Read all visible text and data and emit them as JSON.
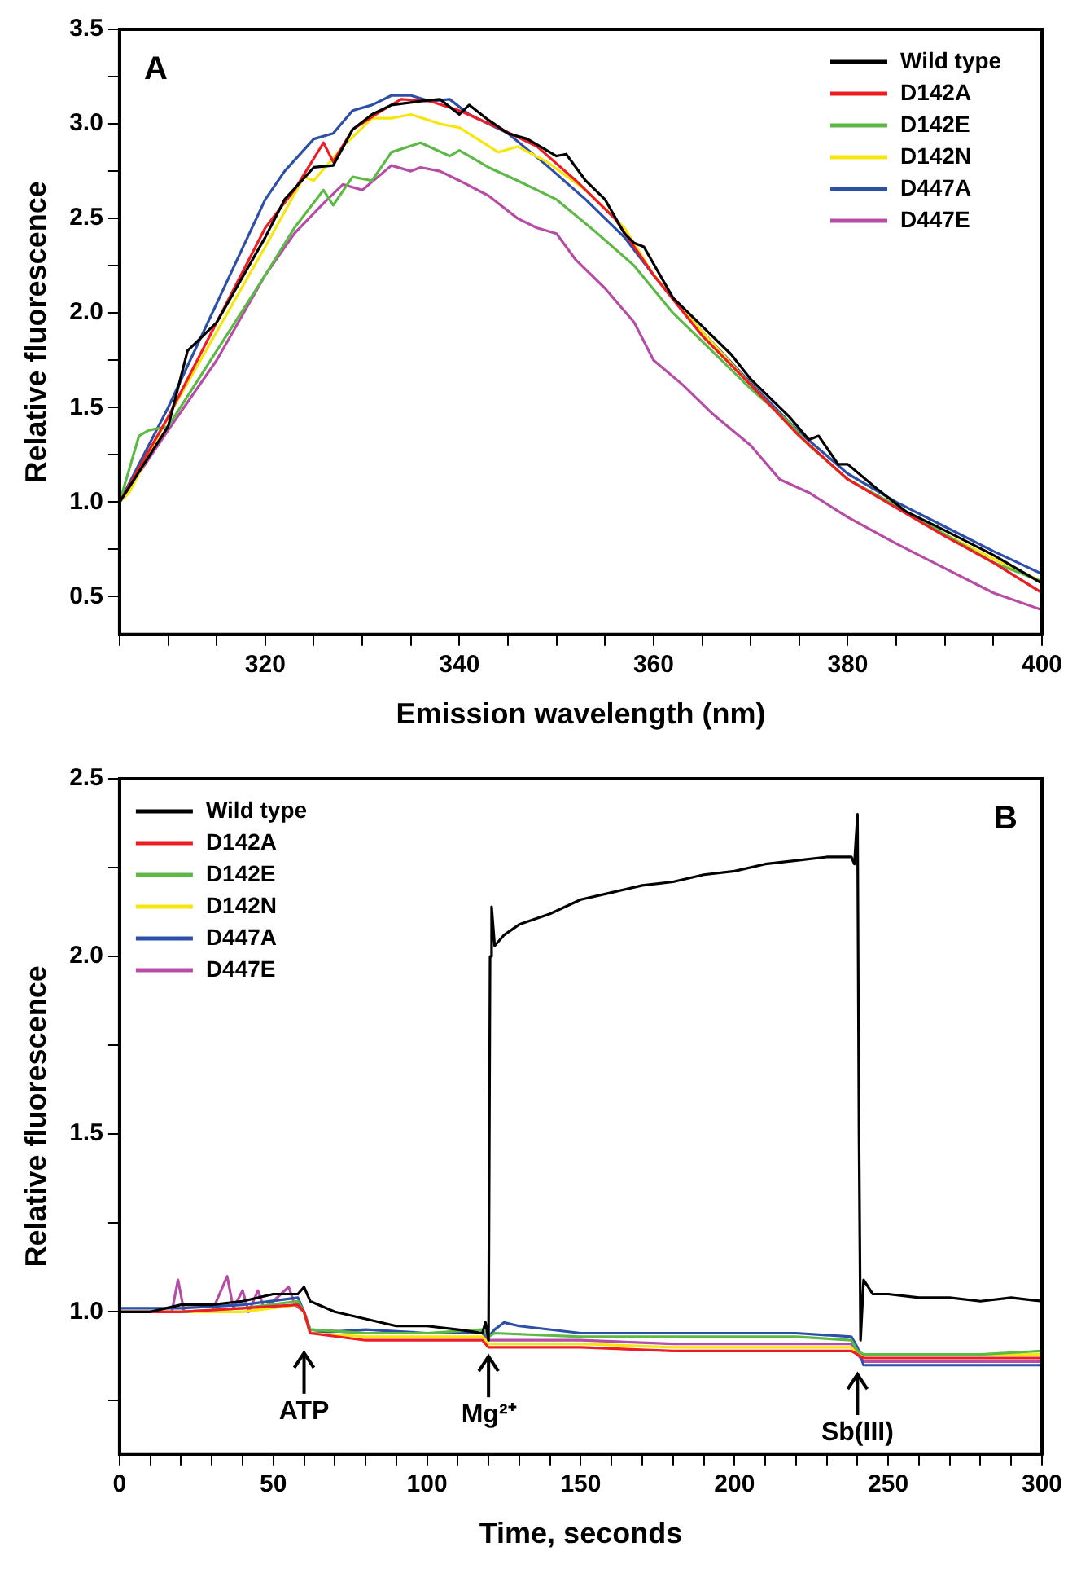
{
  "chart_data": [
    {
      "type": "line",
      "xlabel": "Emission wavelength (nm)",
      "ylabel": "Relative fluorescence",
      "annotations": [
        "A"
      ],
      "legend": "top right",
      "grid": false,
      "marker": "none",
      "line_style": "solid",
      "xlim": [
        305,
        400
      ],
      "xticks": [
        {
          "value": 305,
          "label": null
        },
        {
          "value": 310,
          "label": null
        },
        {
          "value": 315,
          "label": null
        },
        320,
        {
          "value": 325,
          "label": null
        },
        {
          "value": 330,
          "label": null
        },
        {
          "value": 335,
          "label": null
        },
        340,
        {
          "value": 345,
          "label": null
        },
        {
          "value": 350,
          "label": null
        },
        {
          "value": 355,
          "label": null
        },
        360,
        {
          "value": 365,
          "label": null
        },
        {
          "value": 370,
          "label": null
        },
        {
          "value": 375,
          "label": null
        },
        380,
        {
          "value": 385,
          "label": null
        },
        {
          "value": 390,
          "label": null
        },
        {
          "value": 395,
          "label": null
        },
        400
      ],
      "ylim": [
        0.3,
        3.5
      ],
      "yticks": [
        {
          "value": 0.5,
          "label": "0.5"
        },
        {
          "value": 0.75,
          "label": null
        },
        {
          "value": 1,
          "label": "1.0"
        },
        {
          "value": 1.25,
          "label": null
        },
        1.5,
        {
          "value": 1.75,
          "label": null
        },
        {
          "value": 2,
          "label": "2.0"
        },
        {
          "value": 2.25,
          "label": null
        },
        2.5,
        {
          "value": 2.75,
          "label": null
        },
        {
          "value": 3,
          "label": "3.0"
        },
        {
          "value": 3.25,
          "label": null
        },
        3.5
      ],
      "series": [
        {
          "name": "Wild type",
          "color": "#000000",
          "x": [
            305,
            310,
            312,
            315,
            320,
            322,
            325,
            327,
            329,
            331,
            333,
            336,
            338,
            340,
            341,
            343,
            345,
            347,
            350,
            351,
            353,
            355,
            357,
            358,
            359,
            362,
            365,
            368,
            370,
            372,
            374,
            376,
            377,
            379,
            380,
            383,
            386,
            390,
            395,
            400
          ],
          "values": [
            1.0,
            1.4,
            1.8,
            1.95,
            2.4,
            2.6,
            2.77,
            2.78,
            2.97,
            3.05,
            3.1,
            3.12,
            3.13,
            3.05,
            3.1,
            3.02,
            2.95,
            2.92,
            2.83,
            2.84,
            2.7,
            2.6,
            2.42,
            2.37,
            2.35,
            2.08,
            1.93,
            1.78,
            1.65,
            1.55,
            1.45,
            1.33,
            1.35,
            1.2,
            1.2,
            1.07,
            0.95,
            0.85,
            0.72,
            0.57
          ]
        },
        {
          "name": "D142A",
          "color": "#ee1c25",
          "x": [
            305,
            310,
            315,
            320,
            323,
            326,
            327,
            329,
            332,
            334,
            337,
            340,
            344,
            348,
            352,
            356,
            360,
            365,
            370,
            375,
            380,
            385,
            390,
            395,
            400
          ],
          "values": [
            1.0,
            1.45,
            1.95,
            2.45,
            2.65,
            2.9,
            2.8,
            2.97,
            3.07,
            3.13,
            3.12,
            3.07,
            2.98,
            2.88,
            2.7,
            2.5,
            2.2,
            1.88,
            1.62,
            1.35,
            1.12,
            0.97,
            0.82,
            0.68,
            0.52
          ]
        },
        {
          "name": "D142E",
          "color": "#5cb946",
          "x": [
            305,
            307,
            308,
            310,
            315,
            320,
            323,
            326,
            327,
            329,
            331,
            333,
            336,
            339,
            340,
            343,
            346,
            350,
            354,
            358,
            362,
            366,
            370,
            374,
            376,
            380,
            385,
            390,
            395,
            400
          ],
          "values": [
            1.0,
            1.35,
            1.38,
            1.4,
            1.8,
            2.2,
            2.45,
            2.65,
            2.57,
            2.72,
            2.7,
            2.85,
            2.9,
            2.83,
            2.86,
            2.77,
            2.7,
            2.6,
            2.43,
            2.25,
            2.0,
            1.8,
            1.6,
            1.42,
            1.3,
            1.12,
            0.98,
            0.83,
            0.68,
            0.58
          ]
        },
        {
          "name": "D142N",
          "color": "#f5e60f",
          "x": [
            305,
            306,
            310,
            315,
            320,
            324,
            325,
            328,
            331,
            333,
            335,
            338,
            340,
            344,
            346,
            349,
            353,
            357,
            360,
            365,
            370,
            375,
            380,
            385,
            390,
            395,
            400
          ],
          "values": [
            1.0,
            1.05,
            1.45,
            1.9,
            2.35,
            2.72,
            2.7,
            2.88,
            3.03,
            3.03,
            3.05,
            3.0,
            2.98,
            2.85,
            2.88,
            2.8,
            2.65,
            2.45,
            2.2,
            1.9,
            1.62,
            1.35,
            1.12,
            0.98,
            0.83,
            0.7,
            0.58
          ]
        },
        {
          "name": "D447A",
          "color": "#2d4fa8",
          "x": [
            305,
            310,
            315,
            320,
            322,
            325,
            327,
            329,
            331,
            333,
            335,
            337,
            339,
            341,
            345,
            349,
            353,
            357,
            360,
            365,
            370,
            375,
            380,
            385,
            390,
            395,
            400
          ],
          "values": [
            1.0,
            1.5,
            2.05,
            2.6,
            2.75,
            2.92,
            2.95,
            3.07,
            3.1,
            3.15,
            3.15,
            3.12,
            3.13,
            3.05,
            2.95,
            2.78,
            2.6,
            2.4,
            2.2,
            1.9,
            1.63,
            1.37,
            1.15,
            1.0,
            0.87,
            0.74,
            0.62
          ]
        },
        {
          "name": "D447E",
          "color": "#b64ca6",
          "x": [
            305,
            310,
            315,
            320,
            323,
            326,
            328,
            330,
            333,
            335,
            336,
            338,
            340,
            343,
            346,
            348,
            350,
            352,
            355,
            358,
            360,
            363,
            366,
            370,
            373,
            376,
            380,
            385,
            390,
            395,
            400
          ],
          "values": [
            1.0,
            1.38,
            1.75,
            2.2,
            2.42,
            2.58,
            2.68,
            2.65,
            2.78,
            2.75,
            2.77,
            2.75,
            2.7,
            2.62,
            2.5,
            2.45,
            2.42,
            2.28,
            2.13,
            1.95,
            1.75,
            1.62,
            1.47,
            1.3,
            1.12,
            1.05,
            0.92,
            0.78,
            0.65,
            0.52,
            0.43
          ]
        }
      ]
    },
    {
      "type": "line",
      "xlabel": "Time, seconds",
      "ylabel": "Relative fluorescence",
      "annotations": [
        "B",
        {
          "text": "ATP",
          "x": 60,
          "y": 0.93
        },
        {
          "text": "Mg²⁺",
          "x": 120,
          "y": 0.92
        },
        {
          "text": "Sb(III)",
          "x": 240,
          "y": 0.87
        }
      ],
      "legend": "top left",
      "grid": false,
      "marker": "none",
      "line_style": "solid",
      "xlim": [
        0,
        300
      ],
      "xticks": [
        0,
        {
          "value": 10,
          "label": null
        },
        {
          "value": 20,
          "label": null
        },
        {
          "value": 30,
          "label": null
        },
        {
          "value": 40,
          "label": null
        },
        50,
        {
          "value": 60,
          "label": null
        },
        {
          "value": 70,
          "label": null
        },
        {
          "value": 80,
          "label": null
        },
        {
          "value": 90,
          "label": null
        },
        100,
        {
          "value": 110,
          "label": null
        },
        {
          "value": 120,
          "label": null
        },
        {
          "value": 130,
          "label": null
        },
        {
          "value": 140,
          "label": null
        },
        150,
        {
          "value": 160,
          "label": null
        },
        {
          "value": 170,
          "label": null
        },
        {
          "value": 180,
          "label": null
        },
        {
          "value": 190,
          "label": null
        },
        200,
        {
          "value": 210,
          "label": null
        },
        {
          "value": 220,
          "label": null
        },
        {
          "value": 230,
          "label": null
        },
        {
          "value": 240,
          "label": null
        },
        250,
        {
          "value": 260,
          "label": null
        },
        {
          "value": 270,
          "label": null
        },
        {
          "value": 280,
          "label": null
        },
        {
          "value": 290,
          "label": null
        },
        300
      ],
      "ylim": [
        0.6,
        2.5
      ],
      "yticks": [
        {
          "value": 0.75,
          "label": null
        },
        {
          "value": 1,
          "label": "1.0"
        },
        {
          "value": 1.25,
          "label": null
        },
        1.5,
        {
          "value": 1.75,
          "label": null
        },
        {
          "value": 2,
          "label": "2.0"
        },
        {
          "value": 2.25,
          "label": null
        },
        2.5
      ],
      "series": [
        {
          "name": "Wild type",
          "color": "#000000",
          "x": [
            0,
            10,
            20,
            30,
            40,
            50,
            58,
            60,
            62,
            70,
            80,
            90,
            100,
            110,
            118,
            119,
            120,
            120.5,
            121,
            122,
            125,
            130,
            140,
            150,
            160,
            170,
            180,
            190,
            200,
            210,
            220,
            230,
            238,
            239,
            240,
            240.5,
            241,
            242,
            245,
            250,
            260,
            270,
            280,
            290,
            300
          ],
          "values": [
            1.0,
            1.0,
            1.02,
            1.02,
            1.03,
            1.05,
            1.05,
            1.07,
            1.03,
            1.0,
            0.98,
            0.96,
            0.96,
            0.95,
            0.94,
            0.97,
            0.92,
            2.0,
            2.14,
            2.03,
            2.06,
            2.09,
            2.12,
            2.16,
            2.18,
            2.2,
            2.21,
            2.23,
            2.24,
            2.26,
            2.27,
            2.28,
            2.28,
            2.26,
            2.4,
            1.5,
            0.92,
            1.09,
            1.05,
            1.05,
            1.04,
            1.04,
            1.03,
            1.04,
            1.03
          ]
        },
        {
          "name": "D142A",
          "color": "#ee1c25",
          "x": [
            0,
            20,
            40,
            58,
            60,
            62,
            80,
            100,
            118,
            120,
            122,
            150,
            180,
            200,
            220,
            238,
            240,
            242,
            260,
            280,
            300
          ],
          "values": [
            1.0,
            1.0,
            1.01,
            1.02,
            1.0,
            0.94,
            0.92,
            0.92,
            0.92,
            0.9,
            0.9,
            0.9,
            0.89,
            0.89,
            0.89,
            0.89,
            0.88,
            0.87,
            0.87,
            0.87,
            0.87
          ]
        },
        {
          "name": "D142E",
          "color": "#5cb946",
          "x": [
            0,
            20,
            40,
            58,
            60,
            62,
            80,
            100,
            118,
            120,
            122,
            150,
            180,
            200,
            220,
            238,
            240,
            242,
            260,
            280,
            300
          ],
          "values": [
            1.0,
            1.0,
            1.01,
            1.03,
            1.0,
            0.95,
            0.94,
            0.94,
            0.95,
            0.93,
            0.94,
            0.93,
            0.93,
            0.93,
            0.93,
            0.92,
            0.89,
            0.88,
            0.88,
            0.88,
            0.89
          ]
        },
        {
          "name": "D142N",
          "color": "#f5e60f",
          "x": [
            0,
            20,
            40,
            58,
            60,
            62,
            80,
            100,
            118,
            120,
            122,
            150,
            180,
            200,
            220,
            238,
            240,
            242,
            260,
            280,
            300
          ],
          "values": [
            1.0,
            1.0,
            1.0,
            1.02,
            1.0,
            0.94,
            0.93,
            0.93,
            0.93,
            0.91,
            0.91,
            0.91,
            0.9,
            0.9,
            0.9,
            0.9,
            0.88,
            0.88,
            0.88,
            0.88,
            0.88
          ]
        },
        {
          "name": "D447A",
          "color": "#2d4fa8",
          "x": [
            0,
            20,
            40,
            58,
            60,
            62,
            80,
            100,
            118,
            120,
            122,
            125,
            130,
            150,
            180,
            200,
            220,
            238,
            240,
            242,
            260,
            280,
            300
          ],
          "values": [
            1.01,
            1.01,
            1.02,
            1.04,
            1.0,
            0.94,
            0.95,
            0.94,
            0.94,
            0.93,
            0.95,
            0.97,
            0.96,
            0.94,
            0.94,
            0.94,
            0.94,
            0.93,
            0.9,
            0.85,
            0.85,
            0.85,
            0.85
          ]
        },
        {
          "name": "D447E",
          "color": "#b64ca6",
          "x": [
            0,
            17,
            19,
            21,
            30,
            35,
            37,
            40,
            42,
            45,
            47,
            50,
            55,
            57,
            60,
            62,
            80,
            100,
            118,
            120,
            122,
            150,
            180,
            200,
            220,
            238,
            240,
            242,
            260,
            280,
            300
          ],
          "values": [
            1.0,
            1.0,
            1.09,
            1.0,
            1.0,
            1.1,
            1.01,
            1.06,
            1.0,
            1.06,
            1.01,
            1.03,
            1.07,
            1.02,
            1.0,
            0.95,
            0.94,
            0.94,
            0.94,
            0.92,
            0.92,
            0.92,
            0.91,
            0.91,
            0.91,
            0.91,
            0.88,
            0.86,
            0.86,
            0.86,
            0.86
          ]
        }
      ]
    }
  ]
}
